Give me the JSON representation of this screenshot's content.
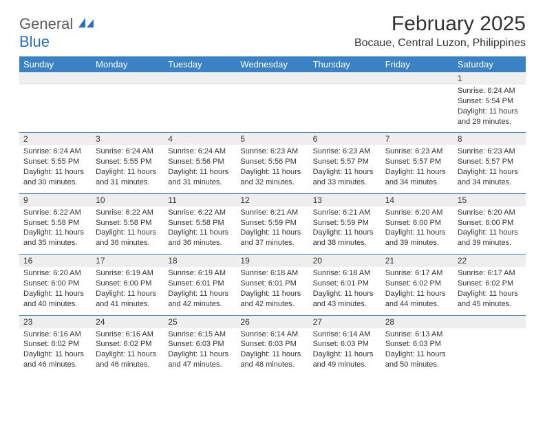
{
  "logo": {
    "text1": "General",
    "text2": "Blue"
  },
  "title": "February 2025",
  "location": "Bocaue, Central Luzon, Philippines",
  "colors": {
    "header_bg": "#3b82c4",
    "header_text": "#ffffff",
    "daynum_bg": "#eeeeee",
    "text": "#333333",
    "logo_accent": "#2d71b8",
    "logo_gray": "#5a5a5a",
    "page_bg": "#ffffff",
    "row_separator": "#3b82c4"
  },
  "typography": {
    "title_fontsize": 30,
    "location_fontsize": 16,
    "dayhead_fontsize": 13,
    "daynum_fontsize": 12,
    "info_fontsize": 11,
    "logo_fontsize": 22
  },
  "day_headers": [
    "Sunday",
    "Monday",
    "Tuesday",
    "Wednesday",
    "Thursday",
    "Friday",
    "Saturday"
  ],
  "weeks": [
    [
      {
        "num": "",
        "sunrise": "",
        "sunset": "",
        "daylight1": "",
        "daylight2": ""
      },
      {
        "num": "",
        "sunrise": "",
        "sunset": "",
        "daylight1": "",
        "daylight2": ""
      },
      {
        "num": "",
        "sunrise": "",
        "sunset": "",
        "daylight1": "",
        "daylight2": ""
      },
      {
        "num": "",
        "sunrise": "",
        "sunset": "",
        "daylight1": "",
        "daylight2": ""
      },
      {
        "num": "",
        "sunrise": "",
        "sunset": "",
        "daylight1": "",
        "daylight2": ""
      },
      {
        "num": "",
        "sunrise": "",
        "sunset": "",
        "daylight1": "",
        "daylight2": ""
      },
      {
        "num": "1",
        "sunrise": "Sunrise: 6:24 AM",
        "sunset": "Sunset: 5:54 PM",
        "daylight1": "Daylight: 11 hours",
        "daylight2": "and 29 minutes."
      }
    ],
    [
      {
        "num": "2",
        "sunrise": "Sunrise: 6:24 AM",
        "sunset": "Sunset: 5:55 PM",
        "daylight1": "Daylight: 11 hours",
        "daylight2": "and 30 minutes."
      },
      {
        "num": "3",
        "sunrise": "Sunrise: 6:24 AM",
        "sunset": "Sunset: 5:55 PM",
        "daylight1": "Daylight: 11 hours",
        "daylight2": "and 31 minutes."
      },
      {
        "num": "4",
        "sunrise": "Sunrise: 6:24 AM",
        "sunset": "Sunset: 5:56 PM",
        "daylight1": "Daylight: 11 hours",
        "daylight2": "and 31 minutes."
      },
      {
        "num": "5",
        "sunrise": "Sunrise: 6:23 AM",
        "sunset": "Sunset: 5:56 PM",
        "daylight1": "Daylight: 11 hours",
        "daylight2": "and 32 minutes."
      },
      {
        "num": "6",
        "sunrise": "Sunrise: 6:23 AM",
        "sunset": "Sunset: 5:57 PM",
        "daylight1": "Daylight: 11 hours",
        "daylight2": "and 33 minutes."
      },
      {
        "num": "7",
        "sunrise": "Sunrise: 6:23 AM",
        "sunset": "Sunset: 5:57 PM",
        "daylight1": "Daylight: 11 hours",
        "daylight2": "and 34 minutes."
      },
      {
        "num": "8",
        "sunrise": "Sunrise: 6:23 AM",
        "sunset": "Sunset: 5:57 PM",
        "daylight1": "Daylight: 11 hours",
        "daylight2": "and 34 minutes."
      }
    ],
    [
      {
        "num": "9",
        "sunrise": "Sunrise: 6:22 AM",
        "sunset": "Sunset: 5:58 PM",
        "daylight1": "Daylight: 11 hours",
        "daylight2": "and 35 minutes."
      },
      {
        "num": "10",
        "sunrise": "Sunrise: 6:22 AM",
        "sunset": "Sunset: 5:58 PM",
        "daylight1": "Daylight: 11 hours",
        "daylight2": "and 36 minutes."
      },
      {
        "num": "11",
        "sunrise": "Sunrise: 6:22 AM",
        "sunset": "Sunset: 5:58 PM",
        "daylight1": "Daylight: 11 hours",
        "daylight2": "and 36 minutes."
      },
      {
        "num": "12",
        "sunrise": "Sunrise: 6:21 AM",
        "sunset": "Sunset: 5:59 PM",
        "daylight1": "Daylight: 11 hours",
        "daylight2": "and 37 minutes."
      },
      {
        "num": "13",
        "sunrise": "Sunrise: 6:21 AM",
        "sunset": "Sunset: 5:59 PM",
        "daylight1": "Daylight: 11 hours",
        "daylight2": "and 38 minutes."
      },
      {
        "num": "14",
        "sunrise": "Sunrise: 6:20 AM",
        "sunset": "Sunset: 6:00 PM",
        "daylight1": "Daylight: 11 hours",
        "daylight2": "and 39 minutes."
      },
      {
        "num": "15",
        "sunrise": "Sunrise: 6:20 AM",
        "sunset": "Sunset: 6:00 PM",
        "daylight1": "Daylight: 11 hours",
        "daylight2": "and 39 minutes."
      }
    ],
    [
      {
        "num": "16",
        "sunrise": "Sunrise: 6:20 AM",
        "sunset": "Sunset: 6:00 PM",
        "daylight1": "Daylight: 11 hours",
        "daylight2": "and 40 minutes."
      },
      {
        "num": "17",
        "sunrise": "Sunrise: 6:19 AM",
        "sunset": "Sunset: 6:00 PM",
        "daylight1": "Daylight: 11 hours",
        "daylight2": "and 41 minutes."
      },
      {
        "num": "18",
        "sunrise": "Sunrise: 6:19 AM",
        "sunset": "Sunset: 6:01 PM",
        "daylight1": "Daylight: 11 hours",
        "daylight2": "and 42 minutes."
      },
      {
        "num": "19",
        "sunrise": "Sunrise: 6:18 AM",
        "sunset": "Sunset: 6:01 PM",
        "daylight1": "Daylight: 11 hours",
        "daylight2": "and 42 minutes."
      },
      {
        "num": "20",
        "sunrise": "Sunrise: 6:18 AM",
        "sunset": "Sunset: 6:01 PM",
        "daylight1": "Daylight: 11 hours",
        "daylight2": "and 43 minutes."
      },
      {
        "num": "21",
        "sunrise": "Sunrise: 6:17 AM",
        "sunset": "Sunset: 6:02 PM",
        "daylight1": "Daylight: 11 hours",
        "daylight2": "and 44 minutes."
      },
      {
        "num": "22",
        "sunrise": "Sunrise: 6:17 AM",
        "sunset": "Sunset: 6:02 PM",
        "daylight1": "Daylight: 11 hours",
        "daylight2": "and 45 minutes."
      }
    ],
    [
      {
        "num": "23",
        "sunrise": "Sunrise: 6:16 AM",
        "sunset": "Sunset: 6:02 PM",
        "daylight1": "Daylight: 11 hours",
        "daylight2": "and 46 minutes."
      },
      {
        "num": "24",
        "sunrise": "Sunrise: 6:16 AM",
        "sunset": "Sunset: 6:02 PM",
        "daylight1": "Daylight: 11 hours",
        "daylight2": "and 46 minutes."
      },
      {
        "num": "25",
        "sunrise": "Sunrise: 6:15 AM",
        "sunset": "Sunset: 6:03 PM",
        "daylight1": "Daylight: 11 hours",
        "daylight2": "and 47 minutes."
      },
      {
        "num": "26",
        "sunrise": "Sunrise: 6:14 AM",
        "sunset": "Sunset: 6:03 PM",
        "daylight1": "Daylight: 11 hours",
        "daylight2": "and 48 minutes."
      },
      {
        "num": "27",
        "sunrise": "Sunrise: 6:14 AM",
        "sunset": "Sunset: 6:03 PM",
        "daylight1": "Daylight: 11 hours",
        "daylight2": "and 49 minutes."
      },
      {
        "num": "28",
        "sunrise": "Sunrise: 6:13 AM",
        "sunset": "Sunset: 6:03 PM",
        "daylight1": "Daylight: 11 hours",
        "daylight2": "and 50 minutes."
      },
      {
        "num": "",
        "sunrise": "",
        "sunset": "",
        "daylight1": "",
        "daylight2": ""
      }
    ]
  ]
}
